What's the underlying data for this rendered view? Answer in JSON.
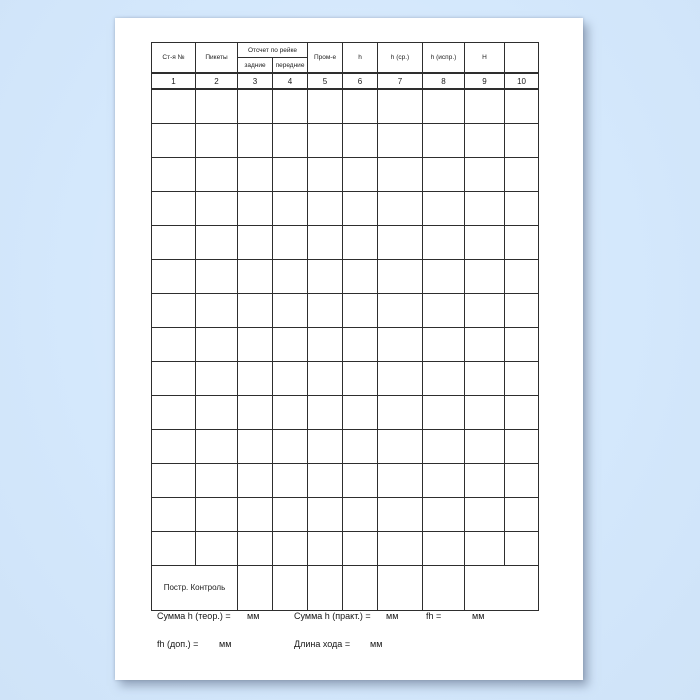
{
  "document": {
    "table": {
      "header": {
        "station": "Ст-я №",
        "pickets": "Пикеты",
        "rod_group": "Отсчет по рейке",
        "rod_back": "задние",
        "rod_front": "передние",
        "intermediate": "Пром-е",
        "h": "h",
        "h_avg": "h (ср.)",
        "h_corr": "h (испр.)",
        "height_mark": "Н",
        "last_col": ""
      },
      "column_numbers": [
        "1",
        "2",
        "3",
        "4",
        "5",
        "6",
        "7",
        "8",
        "9",
        "10"
      ],
      "data_row_count": 14,
      "columns_per_row": 10,
      "control_row_label": "Постр. Контроль"
    },
    "footer": {
      "sum_h_theor_label": "Сумма h (теор.) =",
      "sum_h_theor_unit": "мм",
      "sum_h_pract_label": "Сумма h (практ.) =",
      "sum_h_pract_unit": "мм",
      "fh_label": "fh =",
      "fh_unit": "мм",
      "fh_dop_label": "fh (доп.) =",
      "fh_dop_unit": "мм",
      "line_length_label": "Длина хода =",
      "line_length_unit": "мм"
    },
    "colors": {
      "background": "#d4e8fc",
      "page": "#ffffff",
      "grid_line": "#2e2e2e",
      "text": "#1b1b1b"
    }
  }
}
